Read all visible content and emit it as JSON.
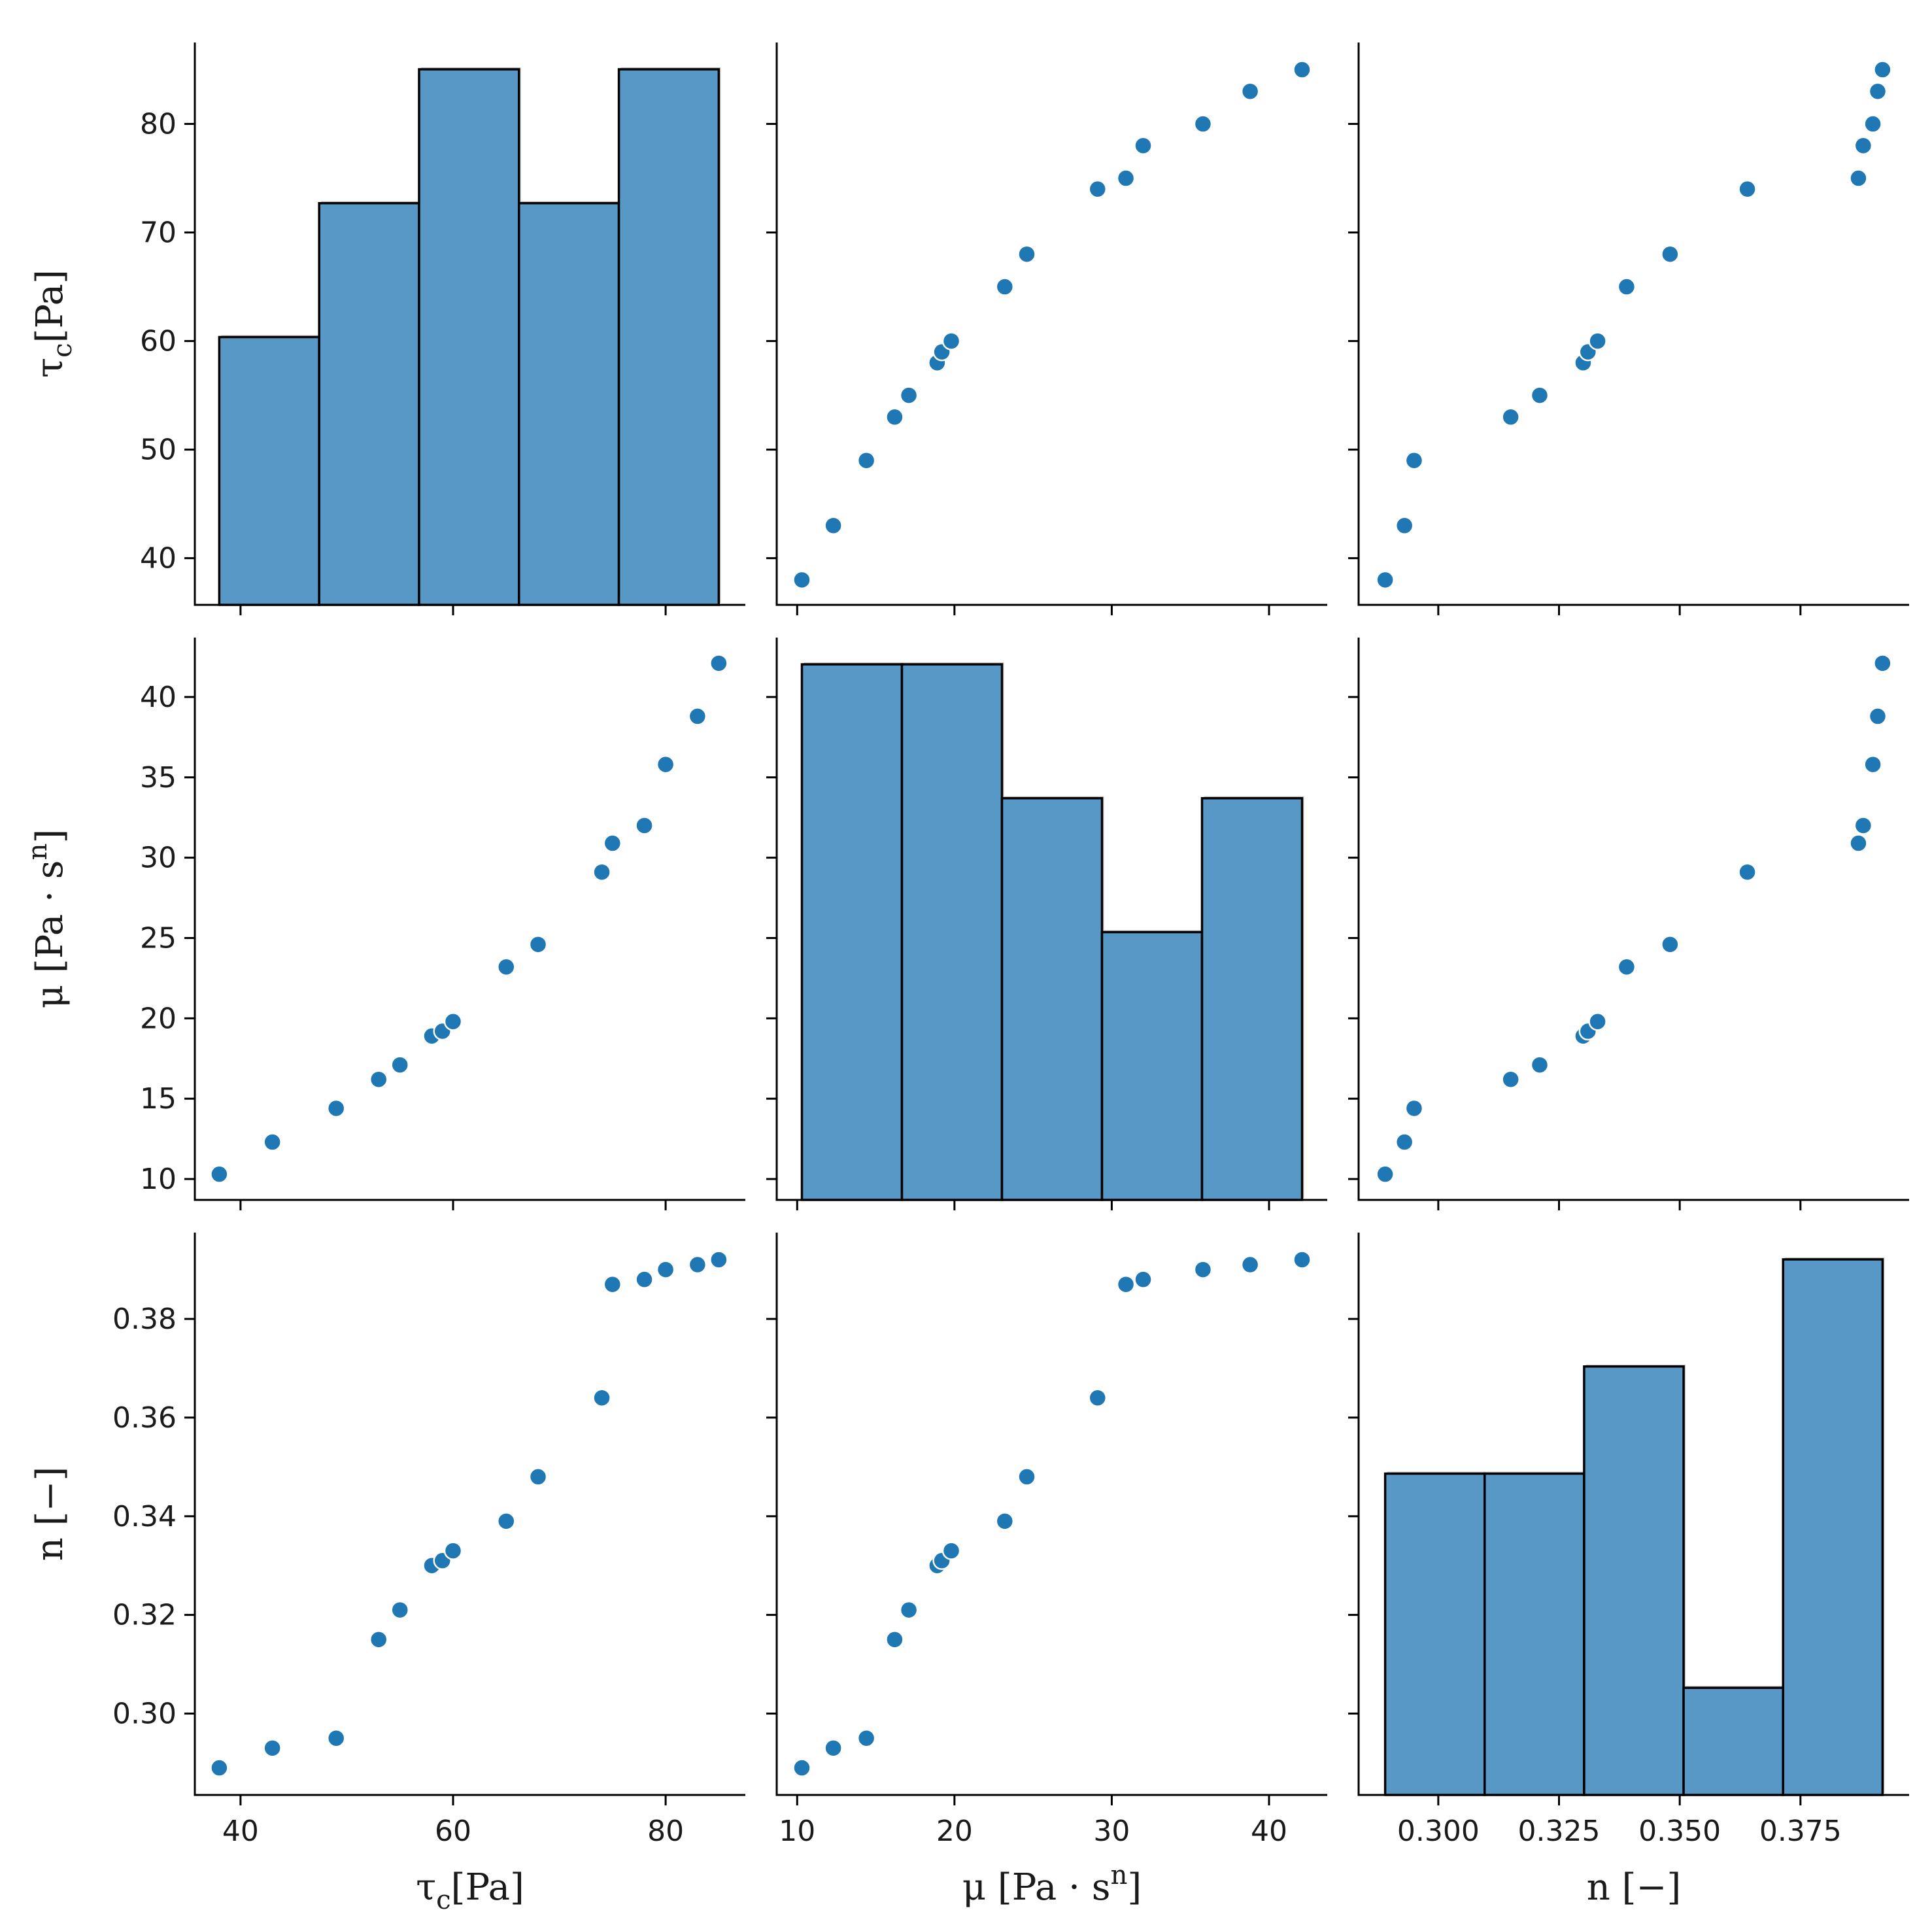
{
  "chart_data": {
    "type": "pairplot",
    "variables": [
      {
        "key": "tau_c",
        "label": "τ",
        "label_sub": "c",
        "label_rest": "[Pa]",
        "label_sup": "",
        "label_tail": ""
      },
      {
        "key": "mu",
        "label": "μ [Pa · s",
        "label_sub": "",
        "label_rest": "",
        "label_sup": "n",
        "label_tail": "]"
      },
      {
        "key": "n",
        "label": "n [−]",
        "label_sub": "",
        "label_rest": "",
        "label_sup": "",
        "label_tail": ""
      }
    ],
    "points": {
      "tau_c": [
        38,
        43,
        49,
        53,
        55,
        58,
        59,
        60,
        65,
        68,
        74,
        75,
        78,
        80,
        83,
        85
      ],
      "mu": [
        10.3,
        12.3,
        14.4,
        16.2,
        17.1,
        18.9,
        19.2,
        19.8,
        23.2,
        24.6,
        29.1,
        30.9,
        32.0,
        35.8,
        38.8,
        42.1
      ],
      "n": [
        0.289,
        0.293,
        0.295,
        0.315,
        0.321,
        0.33,
        0.331,
        0.333,
        0.339,
        0.348,
        0.364,
        0.387,
        0.388,
        0.39,
        0.391,
        0.392
      ]
    },
    "axes": {
      "tau_c": {
        "range": [
          35.7,
          87.5
        ],
        "ticks": [
          40,
          50,
          60,
          70,
          80
        ],
        "xticks": [
          40,
          60,
          80
        ],
        "tick_labels": [
          "40",
          "50",
          "60",
          "70",
          "80"
        ],
        "xtick_labels": [
          "40",
          "60",
          "80"
        ]
      },
      "mu": {
        "range": [
          8.7,
          43.7
        ],
        "ticks": [
          10,
          15,
          20,
          25,
          30,
          35,
          40
        ],
        "xticks": [
          10,
          20,
          30,
          40
        ],
        "tick_labels": [
          "10",
          "15",
          "20",
          "25",
          "30",
          "35",
          "40"
        ],
        "xtick_labels": [
          "10",
          "20",
          "30",
          "40"
        ]
      },
      "n": {
        "range": [
          0.2835,
          0.3975
        ],
        "ticks": [
          0.3,
          0.32,
          0.34,
          0.36,
          0.38
        ],
        "xticks": [
          0.3,
          0.325,
          0.35,
          0.375
        ],
        "tick_labels": [
          "0.30",
          "0.32",
          "0.34",
          "0.36",
          "0.38"
        ],
        "xtick_labels": [
          "0.300",
          "0.325",
          "0.350",
          "0.375"
        ]
      }
    },
    "histograms": {
      "tau_c": {
        "bin_edges": [
          38.0,
          47.4,
          56.8,
          66.2,
          75.6,
          85.0
        ],
        "counts": [
          2,
          3,
          4,
          3,
          4
        ],
        "ymax": 4.2
      },
      "mu": {
        "bin_edges": [
          10.3,
          16.66,
          23.02,
          29.38,
          35.74,
          42.1
        ],
        "counts": [
          4,
          4,
          3,
          2,
          3
        ],
        "ymax": 4.2
      },
      "n": {
        "bin_edges": [
          0.289,
          0.3096,
          0.3302,
          0.3508,
          0.3714,
          0.392
        ],
        "counts": [
          3,
          3,
          4,
          1,
          5
        ],
        "ymax": 5.25
      }
    },
    "grid": false,
    "legend": "none",
    "colors": {
      "points": "#1f77b4",
      "bars": "#5798c6",
      "bar_edge": "#000000",
      "point_edge": "#ffffff"
    }
  }
}
